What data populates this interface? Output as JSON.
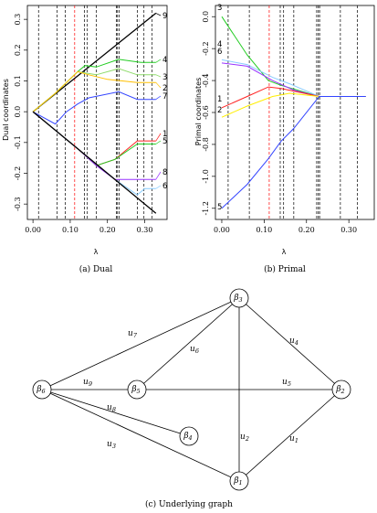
{
  "charts": [
    {
      "id": "dual",
      "type": "line",
      "caption": "(a) Dual",
      "xlabel": "λ",
      "ylabel": "Dual coordinates",
      "xlim": [
        -0.015,
        0.36
      ],
      "ylim": [
        -0.35,
        0.345
      ],
      "xticks": [
        0.0,
        0.1,
        0.2,
        0.3
      ],
      "xtick_labels": [
        "0.00",
        "0.10",
        "0.20",
        "0.30"
      ],
      "yticks": [
        -0.3,
        -0.2,
        -0.1,
        0.0,
        0.1,
        0.2,
        0.3
      ],
      "ytick_labels": [
        "-0.3",
        "-0.2",
        "-0.1",
        "0.0",
        "0.1",
        "0.2",
        "0.3"
      ],
      "vlines": [
        {
          "x": 0.015,
          "color": "#000000"
        },
        {
          "x": 0.065,
          "color": "#000000"
        },
        {
          "x": 0.087,
          "color": "#000000"
        },
        {
          "x": 0.112,
          "color": "#ff0000"
        },
        {
          "x": 0.138,
          "color": "#000000"
        },
        {
          "x": 0.146,
          "color": "#000000"
        },
        {
          "x": 0.17,
          "color": "#000000"
        },
        {
          "x": 0.224,
          "color": "#000000"
        },
        {
          "x": 0.227,
          "color": "#000000"
        },
        {
          "x": 0.231,
          "color": "#000000"
        },
        {
          "x": 0.28,
          "color": "#000000"
        },
        {
          "x": 0.298,
          "color": "#000000"
        },
        {
          "x": 0.32,
          "color": "#000000"
        }
      ]
    },
    {
      "id": "primal",
      "type": "line",
      "caption": "(b) Primal",
      "xlabel": "λ",
      "ylabel": "Primal coordinates",
      "xlim": [
        -0.015,
        0.36
      ],
      "ylim": [
        -1.27,
        0.07
      ],
      "xticks": [
        0.0,
        0.1,
        0.2,
        0.3
      ],
      "xtick_labels": [
        "0.00",
        "0.10",
        "0.20",
        "0.30"
      ],
      "yticks": [
        -1.2,
        -1.0,
        -0.8,
        -0.6,
        -0.4,
        -0.2,
        0.0
      ],
      "ytick_labels": [
        "-1.2",
        "-1.0",
        "-0.8",
        "-0.6",
        "-0.4",
        "-0.2",
        "0.0"
      ],
      "vlines": [
        {
          "x": 0.015,
          "color": "#000000"
        },
        {
          "x": 0.065,
          "color": "#000000"
        },
        {
          "x": 0.112,
          "color": "#ff0000"
        },
        {
          "x": 0.138,
          "color": "#000000"
        },
        {
          "x": 0.146,
          "color": "#000000"
        },
        {
          "x": 0.17,
          "color": "#000000"
        },
        {
          "x": 0.224,
          "color": "#000000"
        },
        {
          "x": 0.228,
          "color": "#000000"
        },
        {
          "x": 0.231,
          "color": "#000000"
        },
        {
          "x": 0.28,
          "color": "#000000"
        },
        {
          "x": 0.32,
          "color": "#000000"
        }
      ]
    }
  ],
  "chart_data": [
    {
      "type": "line",
      "title": "(a) Dual",
      "xlabel": "λ",
      "ylabel": "Dual coordinates",
      "xlim": [
        -0.015,
        0.36
      ],
      "ylim": [
        -0.35,
        0.345
      ],
      "series": [
        {
          "name": "9",
          "color": "#000000",
          "points": [
            [
              0,
              0
            ],
            [
              0.33,
              0.32
            ]
          ]
        },
        {
          "name": "4",
          "color": "#22cc22",
          "points": [
            [
              0,
              0
            ],
            [
              0.06,
              0.06
            ],
            [
              0.12,
              0.13
            ],
            [
              0.14,
              0.15
            ],
            [
              0.17,
              0.145
            ],
            [
              0.23,
              0.17
            ],
            [
              0.29,
              0.16
            ],
            [
              0.33,
              0.16
            ]
          ]
        },
        {
          "name": "3",
          "color": "#8edb6a",
          "points": [
            [
              0,
              0
            ],
            [
              0.06,
              0.06
            ],
            [
              0.12,
              0.13
            ],
            [
              0.17,
              0.12
            ],
            [
              0.23,
              0.14
            ],
            [
              0.28,
              0.12
            ],
            [
              0.33,
              0.12
            ]
          ]
        },
        {
          "name": "2",
          "color": "#ffbf00",
          "points": [
            [
              0,
              0
            ],
            [
              0.06,
              0.06
            ],
            [
              0.12,
              0.13
            ],
            [
              0.15,
              0.12
            ],
            [
              0.2,
              0.105
            ],
            [
              0.28,
              0.095
            ],
            [
              0.33,
              0.095
            ]
          ]
        },
        {
          "name": "7",
          "color": "#3344ff",
          "points": [
            [
              0,
              0
            ],
            [
              0.06,
              -0.04
            ],
            [
              0.09,
              0.0
            ],
            [
              0.12,
              0.025
            ],
            [
              0.15,
              0.045
            ],
            [
              0.23,
              0.065
            ],
            [
              0.28,
              0.04
            ],
            [
              0.33,
              0.04
            ]
          ]
        },
        {
          "name": "1",
          "color": "#ff2222",
          "points": [
            [
              0,
              0
            ],
            [
              0.06,
              -0.06
            ],
            [
              0.12,
              -0.12
            ],
            [
              0.17,
              -0.175
            ],
            [
              0.22,
              -0.155
            ],
            [
              0.28,
              -0.095
            ],
            [
              0.33,
              -0.095
            ]
          ]
        },
        {
          "name": "5",
          "color": "#22cc22",
          "points": [
            [
              0,
              0
            ],
            [
              0.06,
              -0.06
            ],
            [
              0.12,
              -0.12
            ],
            [
              0.17,
              -0.175
            ],
            [
              0.22,
              -0.155
            ],
            [
              0.28,
              -0.105
            ],
            [
              0.33,
              -0.105
            ]
          ]
        },
        {
          "name": "8",
          "color": "#9933ff",
          "points": [
            [
              0,
              0
            ],
            [
              0.06,
              -0.06
            ],
            [
              0.12,
              -0.12
            ],
            [
              0.17,
              -0.175
            ],
            [
              0.22,
              -0.22
            ],
            [
              0.33,
              -0.22
            ]
          ]
        },
        {
          "name": "6",
          "color": "#88ccff",
          "points": [
            [
              0,
              0
            ],
            [
              0.06,
              -0.06
            ],
            [
              0.12,
              -0.12
            ],
            [
              0.22,
              -0.22
            ],
            [
              0.28,
              -0.27
            ],
            [
              0.3,
              -0.25
            ],
            [
              0.33,
              -0.25
            ]
          ]
        },
        {
          "name": "",
          "color": "#000000",
          "points": [
            [
              0,
              0
            ],
            [
              0.33,
              -0.33
            ]
          ]
        }
      ]
    },
    {
      "type": "line",
      "title": "(b) Primal",
      "xlabel": "λ",
      "ylabel": "Primal coordinates",
      "xlim": [
        -0.015,
        0.36
      ],
      "ylim": [
        -1.27,
        0.07
      ],
      "series": [
        {
          "name": "3",
          "color": "#22cc22",
          "points": [
            [
              0,
              0
            ],
            [
              0.06,
              -0.24
            ],
            [
              0.11,
              -0.4
            ],
            [
              0.14,
              -0.43
            ],
            [
              0.23,
              -0.5
            ],
            [
              0.34,
              -0.5
            ]
          ]
        },
        {
          "name": "4",
          "color": "#88ccff",
          "points": [
            [
              0,
              -0.27
            ],
            [
              0.06,
              -0.3
            ],
            [
              0.12,
              -0.38
            ],
            [
              0.16,
              -0.42
            ],
            [
              0.23,
              -0.5
            ],
            [
              0.34,
              -0.5
            ]
          ]
        },
        {
          "name": "6",
          "color": "#9933ff",
          "points": [
            [
              0,
              -0.29
            ],
            [
              0.06,
              -0.31
            ],
            [
              0.12,
              -0.4
            ],
            [
              0.17,
              -0.46
            ],
            [
              0.23,
              -0.5
            ],
            [
              0.34,
              -0.5
            ]
          ]
        },
        {
          "name": "1",
          "color": "#ff2222",
          "points": [
            [
              0,
              -0.57
            ],
            [
              0.06,
              -0.5
            ],
            [
              0.11,
              -0.44
            ],
            [
              0.14,
              -0.45
            ],
            [
              0.23,
              -0.5
            ],
            [
              0.34,
              -0.5
            ]
          ]
        },
        {
          "name": "2",
          "color": "#ffee00",
          "points": [
            [
              0,
              -0.63
            ],
            [
              0.06,
              -0.56
            ],
            [
              0.12,
              -0.5
            ],
            [
              0.16,
              -0.48
            ],
            [
              0.23,
              -0.5
            ],
            [
              0.34,
              -0.5
            ]
          ]
        },
        {
          "name": "5",
          "color": "#3344ff",
          "points": [
            [
              0,
              -1.2
            ],
            [
              0.06,
              -1.05
            ],
            [
              0.11,
              -0.89
            ],
            [
              0.14,
              -0.78
            ],
            [
              0.17,
              -0.7
            ],
            [
              0.23,
              -0.5
            ],
            [
              0.34,
              -0.5
            ]
          ]
        }
      ]
    }
  ],
  "graph": {
    "caption": "(c) Underlying graph",
    "nodes": [
      {
        "id": "b3",
        "label": "β3",
        "sub": "3"
      },
      {
        "id": "b6",
        "label": "β6",
        "sub": "6"
      },
      {
        "id": "b5",
        "label": "β5",
        "sub": "5"
      },
      {
        "id": "b2",
        "label": "β2",
        "sub": "2"
      },
      {
        "id": "b4",
        "label": "β4",
        "sub": "4"
      },
      {
        "id": "b1",
        "label": "β1",
        "sub": "1"
      }
    ],
    "edges": [
      {
        "from": "b6",
        "to": "b3",
        "label": "u7",
        "sub": "7"
      },
      {
        "from": "b5",
        "to": "b3",
        "label": "u6",
        "sub": "6"
      },
      {
        "from": "b3",
        "to": "b2",
        "label": "u4",
        "sub": "4"
      },
      {
        "from": "b3",
        "to": "b1",
        "label": "u2",
        "sub": "2"
      },
      {
        "from": "b6",
        "to": "b5",
        "label": "u9",
        "sub": "9"
      },
      {
        "from": "b5",
        "to": "b2",
        "label": "u5",
        "sub": "5"
      },
      {
        "from": "b6",
        "to": "b4",
        "label": "u8",
        "sub": "8"
      },
      {
        "from": "b6",
        "to": "b1",
        "label": "u3",
        "sub": "3"
      },
      {
        "from": "b1",
        "to": "b2",
        "label": "u1",
        "sub": "1"
      }
    ]
  }
}
